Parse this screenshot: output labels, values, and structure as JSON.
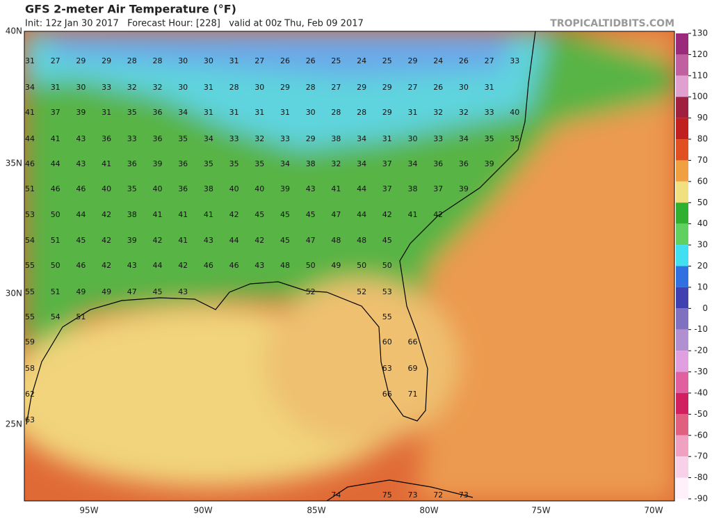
{
  "header": {
    "title": "GFS 2-meter Air Temperature (°F)",
    "subtitle": "Init: 12z Jan 30 2017   Forecast Hour: [228]   valid at 00z Thu, Feb 09 2017",
    "source": "TROPICALTIDBITS.COM"
  },
  "map": {
    "lat_labels": [
      "40N",
      "35N",
      "30N",
      "25N"
    ],
    "lon_labels": [
      "95W",
      "90W",
      "85W",
      "80W",
      "75W",
      "70W"
    ],
    "station_rows": [
      [
        "31",
        "27",
        "29",
        "29",
        "28",
        "28",
        "30",
        "30",
        "31",
        "27",
        "26",
        "26",
        "25",
        "24",
        "25",
        "29",
        "24",
        "26",
        "27",
        "33"
      ],
      [
        "34",
        "31",
        "30",
        "33",
        "32",
        "32",
        "30",
        "31",
        "28",
        "30",
        "29",
        "28",
        "27",
        "29",
        "29",
        "27",
        "26",
        "30",
        "31"
      ],
      [
        "41",
        "37",
        "39",
        "31",
        "35",
        "36",
        "34",
        "31",
        "31",
        "31",
        "31",
        "30",
        "28",
        "28",
        "29",
        "31",
        "32",
        "32",
        "33",
        "40"
      ],
      [
        "44",
        "41",
        "43",
        "36",
        "33",
        "36",
        "35",
        "34",
        "33",
        "32",
        "33",
        "29",
        "38",
        "34",
        "31",
        "30",
        "33",
        "34",
        "35",
        "35"
      ],
      [
        "46",
        "44",
        "43",
        "41",
        "36",
        "39",
        "36",
        "35",
        "35",
        "35",
        "34",
        "38",
        "32",
        "34",
        "37",
        "34",
        "36",
        "36",
        "39"
      ],
      [
        "51",
        "46",
        "46",
        "40",
        "35",
        "40",
        "36",
        "38",
        "40",
        "40",
        "39",
        "43",
        "41",
        "44",
        "37",
        "38",
        "37",
        "39"
      ],
      [
        "53",
        "50",
        "44",
        "42",
        "38",
        "41",
        "41",
        "41",
        "42",
        "45",
        "45",
        "45",
        "47",
        "44",
        "42",
        "41",
        "42"
      ],
      [
        "54",
        "51",
        "45",
        "42",
        "39",
        "42",
        "41",
        "43",
        "44",
        "42",
        "45",
        "47",
        "48",
        "48",
        "45"
      ],
      [
        "55",
        "50",
        "46",
        "42",
        "43",
        "44",
        "42",
        "46",
        "46",
        "43",
        "48",
        "50",
        "49",
        "50",
        "50"
      ],
      [
        "55",
        "51",
        "49",
        "49",
        "47",
        "45",
        "43",
        null,
        null,
        null,
        null,
        "52",
        null,
        "52",
        "53"
      ],
      [
        "55",
        "54",
        "51",
        null,
        null,
        null,
        null,
        null,
        null,
        null,
        null,
        null,
        null,
        null,
        "55"
      ],
      [
        "59",
        null,
        null,
        null,
        null,
        null,
        null,
        null,
        null,
        null,
        null,
        null,
        null,
        null,
        "60",
        "66"
      ],
      [
        "58",
        null,
        null,
        null,
        null,
        null,
        null,
        null,
        null,
        null,
        null,
        null,
        null,
        null,
        "63",
        "69"
      ],
      [
        "62",
        null,
        null,
        null,
        null,
        null,
        null,
        null,
        null,
        null,
        null,
        null,
        null,
        null,
        "66",
        "71"
      ],
      [
        "63"
      ],
      [
        null,
        null,
        null,
        null,
        null,
        null,
        null,
        null,
        null,
        null,
        null,
        null,
        "74",
        null,
        "75",
        "73",
        "72",
        "73"
      ]
    ]
  },
  "colorbar": {
    "ticks": [
      130,
      120,
      110,
      100,
      90,
      80,
      70,
      60,
      50,
      40,
      30,
      20,
      10,
      0,
      -10,
      -20,
      -30,
      -40,
      -50,
      -60,
      -70,
      -80,
      -90
    ],
    "colors": [
      "#9b2a7a",
      "#c060a0",
      "#e0a0d0",
      "#a02040",
      "#c02020",
      "#e05020",
      "#f0a040",
      "#f0e080",
      "#30b030",
      "#60d060",
      "#40e0f0",
      "#3070e0",
      "#4040b0",
      "#8070c0",
      "#b090d0",
      "#e0a0e0",
      "#e060a0",
      "#d02060",
      "#e06080",
      "#f0a0c0",
      "#f8d0e8",
      "#fff0fa"
    ]
  }
}
